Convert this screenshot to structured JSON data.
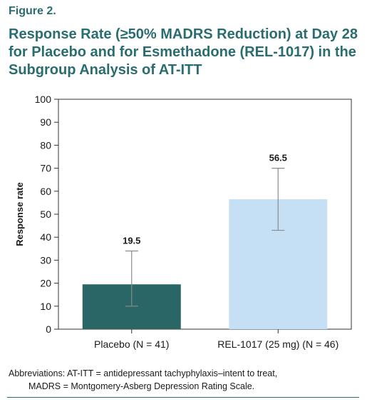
{
  "figure_label": "Figure 2.",
  "title": "Response Rate (≥50% MADRS Reduction) at Day 28 for Placebo and for Esmethadone (REL-1017) in the Subgroup Analysis of AT-ITT",
  "footnote": {
    "line1": "Abbreviations: AT-ITT = antidepressant tachyphylaxis–intent to treat,",
    "line2": "MADRS = Montgomery-Asberg Depression Rating Scale."
  },
  "colors": {
    "title": "#2a6d70",
    "placebo": "#2a6666",
    "rel1017": "#c5e0f4",
    "error_bar": "#8a8a8a"
  },
  "chart_data": {
    "type": "bar",
    "categories": [
      "Placebo (N = 41)",
      "REL-1017 (25 mg) (N = 46)"
    ],
    "values": [
      19.5,
      56.5
    ],
    "error_low": [
      10,
      43
    ],
    "error_high": [
      34,
      70
    ],
    "data_labels": [
      "19.5",
      "56.5"
    ],
    "bar_colors": [
      "#2a6666",
      "#c5e0f4"
    ],
    "ylabel": "Response rate",
    "xlabel": "",
    "ylim": [
      0,
      100
    ],
    "yticks": [
      0,
      10,
      20,
      30,
      40,
      50,
      60,
      70,
      80,
      90,
      100
    ],
    "grid": false
  }
}
